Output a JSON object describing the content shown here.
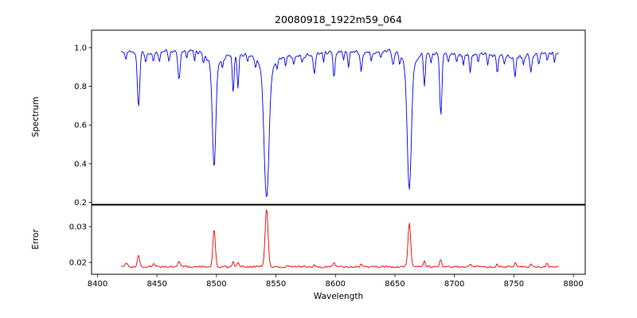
{
  "chart_data": {
    "type": "line",
    "title": "20080918_1922m59_064",
    "xlabel": "Wavelength",
    "grid": false,
    "legend": "none",
    "x_range": [
      8420,
      8788
    ],
    "x_step": 0.7,
    "xlim": [
      8395,
      8810
    ],
    "x_ticks": [
      8400,
      8450,
      8500,
      8550,
      8600,
      8650,
      8700,
      8750,
      8800
    ],
    "panels": [
      {
        "name": "spectrum",
        "ylabel": "Spectrum",
        "color": "#0000ee",
        "ylim": [
          0.19,
          1.09
        ],
        "y_ticks": [
          0.2,
          0.4,
          0.6,
          0.8,
          1.0
        ],
        "y_tick_labels": [
          "0.2",
          "0.4",
          "0.6",
          "0.8",
          "1.0"
        ],
        "continuum": 0.97,
        "noise_amplitude": 0.012,
        "absorption_lines": [
          [
            8424.0,
            0.05,
            0.6
          ],
          [
            8434.5,
            0.29,
            1.0
          ],
          [
            8440.5,
            0.06,
            0.6
          ],
          [
            8447.0,
            0.05,
            0.6
          ],
          [
            8452.0,
            0.04,
            0.6
          ],
          [
            8460.0,
            0.05,
            0.6
          ],
          [
            8468.5,
            0.14,
            0.9
          ],
          [
            8475.0,
            0.04,
            0.6
          ],
          [
            8481.5,
            0.05,
            0.6
          ],
          [
            8489.0,
            0.04,
            0.6
          ],
          [
            8498.0,
            0.53,
            1.4
          ],
          [
            8498.0,
            0.06,
            5.0
          ],
          [
            8505.0,
            0.05,
            0.6
          ],
          [
            8514.1,
            0.19,
            0.7
          ],
          [
            8518.1,
            0.17,
            0.7
          ],
          [
            8526.0,
            0.04,
            0.6
          ],
          [
            8533.0,
            0.04,
            0.6
          ],
          [
            8542.1,
            0.67,
            2.0
          ],
          [
            8542.1,
            0.08,
            6.0
          ],
          [
            8551.0,
            0.04,
            0.6
          ],
          [
            8558.0,
            0.05,
            0.6
          ],
          [
            8565.0,
            0.04,
            0.6
          ],
          [
            8572.0,
            0.04,
            0.6
          ],
          [
            8582.3,
            0.1,
            0.8
          ],
          [
            8590.0,
            0.04,
            0.6
          ],
          [
            8598.8,
            0.13,
            0.8
          ],
          [
            8607.0,
            0.04,
            0.6
          ],
          [
            8611.0,
            0.08,
            0.7
          ],
          [
            8621.6,
            0.1,
            0.7
          ],
          [
            8630.0,
            0.05,
            0.6
          ],
          [
            8638.0,
            0.04,
            0.6
          ],
          [
            8648.5,
            0.08,
            0.9
          ],
          [
            8654.0,
            0.04,
            0.6
          ],
          [
            8662.1,
            0.64,
            1.7
          ],
          [
            8662.1,
            0.08,
            5.5
          ],
          [
            8674.8,
            0.17,
            0.8
          ],
          [
            8680.5,
            0.05,
            0.6
          ],
          [
            8688.6,
            0.32,
            0.9
          ],
          [
            8695.0,
            0.04,
            0.6
          ],
          [
            8702.0,
            0.04,
            0.6
          ],
          [
            8707.5,
            0.05,
            0.6
          ],
          [
            8713.2,
            0.09,
            0.7
          ],
          [
            8720.0,
            0.04,
            0.6
          ],
          [
            8728.0,
            0.05,
            0.6
          ],
          [
            8736.0,
            0.09,
            0.7
          ],
          [
            8742.0,
            0.04,
            0.6
          ],
          [
            8751.0,
            0.11,
            0.7
          ],
          [
            8758.0,
            0.04,
            0.6
          ],
          [
            8764.3,
            0.09,
            0.7
          ],
          [
            8771.0,
            0.05,
            0.6
          ],
          [
            8778.0,
            0.04,
            0.6
          ],
          [
            8784.0,
            0.05,
            0.6
          ]
        ]
      },
      {
        "name": "error",
        "ylabel": "Error",
        "color": "#ee0000",
        "ylim": [
          0.0167,
          0.036
        ],
        "y_ticks": [
          0.02,
          0.03
        ],
        "y_tick_labels": [
          "0.02",
          "0.03"
        ],
        "baseline": 0.0188,
        "noise_amplitude": 0.00035,
        "peaks": [
          [
            8424.0,
            0.0012,
            1.0
          ],
          [
            8434.5,
            0.0032,
            0.9
          ],
          [
            8447.0,
            0.0008,
            0.8
          ],
          [
            8468.5,
            0.0012,
            0.9
          ],
          [
            8498.0,
            0.0105,
            1.0
          ],
          [
            8514.1,
            0.0016,
            0.7
          ],
          [
            8518.1,
            0.0015,
            0.7
          ],
          [
            8542.1,
            0.0163,
            1.2
          ],
          [
            8582.3,
            0.0007,
            0.7
          ],
          [
            8598.8,
            0.001,
            0.8
          ],
          [
            8621.6,
            0.0007,
            0.7
          ],
          [
            8662.1,
            0.0124,
            1.1
          ],
          [
            8674.8,
            0.0014,
            0.8
          ],
          [
            8688.6,
            0.0022,
            0.8
          ],
          [
            8713.2,
            0.0008,
            0.7
          ],
          [
            8736.0,
            0.0007,
            0.7
          ],
          [
            8751.0,
            0.0012,
            0.7
          ],
          [
            8764.3,
            0.001,
            0.7
          ],
          [
            8778.0,
            0.0008,
            0.7
          ]
        ]
      }
    ]
  }
}
